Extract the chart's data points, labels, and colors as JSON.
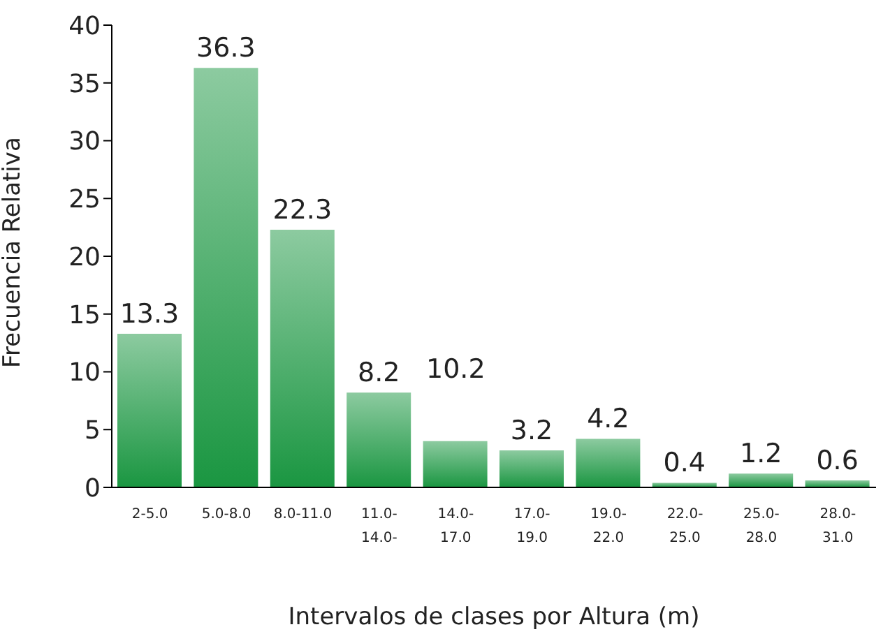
{
  "chart_data": {
    "type": "bar",
    "xlabel": "Intervalos de clases por Altura (m)",
    "ylabel": "Frecuencia Relativa",
    "categories": [
      "2-5.0",
      "5.0-8.0",
      "8.0-11.0",
      "11.0- 14.0-",
      "14.0- 17.0",
      "17.0- 19.0",
      "19.0- 22.0",
      "22.0- 25.0",
      "25.0- 28.0",
      "28.0- 31.0"
    ],
    "values": [
      13.3,
      36.3,
      22.3,
      8.2,
      4,
      3.2,
      4.2,
      0.4,
      1.2,
      0.6
    ],
    "value_labels": [
      "13.3",
      "36.3",
      "22.3",
      "8.2",
      null,
      "3.2",
      "4.2",
      "0.4",
      "1.2",
      "0.6"
    ],
    "annotations": [
      "10.2"
    ],
    "color": "#1a9641",
    "ylim": [
      0,
      40
    ],
    "yticks": [
      0,
      5,
      10,
      15,
      20,
      25,
      30,
      35,
      40
    ],
    "grid": false,
    "legend": false
  }
}
